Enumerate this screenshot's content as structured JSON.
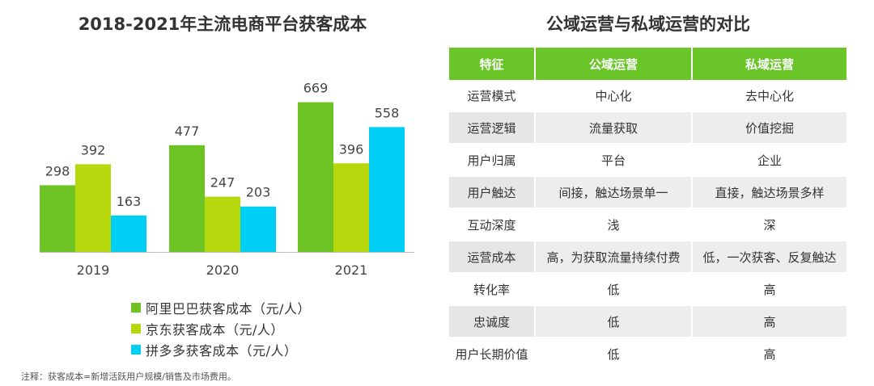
{
  "left": {
    "title": "2018-2021年主流电商平台获客成本",
    "note": "注释：获客成本=新增活跃用户规模/销售及市场费用。"
  },
  "chart_data": {
    "type": "bar",
    "categories": [
      "2019",
      "2020",
      "2021"
    ],
    "series": [
      {
        "name": "阿里巴巴获客成本（元/人）",
        "values": [
          298,
          477,
          669
        ],
        "color": "#6cc323"
      },
      {
        "name": "京东获客成本（元/人）",
        "values": [
          392,
          247,
          396
        ],
        "color": "#b7d80d"
      },
      {
        "name": "拼多多获客成本（元/人）",
        "values": [
          163,
          203,
          558
        ],
        "color": "#00cff5"
      }
    ],
    "title": "2018-2021年主流电商平台获客成本",
    "ylim": [
      0,
      700
    ],
    "grid": false,
    "legend": "bottom"
  },
  "right": {
    "title": "公域运营与私域运营的对比",
    "headers": [
      "特征",
      "公域运营",
      "私域运营"
    ],
    "rows": [
      [
        "运营模式",
        "中心化",
        "去中心化"
      ],
      [
        "运营逻辑",
        "流量获取",
        "价值挖掘"
      ],
      [
        "用户归属",
        "平台",
        "企业"
      ],
      [
        "用户触达",
        "间接，触达场景单一",
        "直接，触达场景多样"
      ],
      [
        "互动深度",
        "浅",
        "深"
      ],
      [
        "运营成本",
        "高，为获取流量持续付费",
        "低，一次获客、反复触达"
      ],
      [
        "转化率",
        "低",
        "高"
      ],
      [
        "忠诚度",
        "低",
        "高"
      ],
      [
        "用户长期价值",
        "低",
        "高"
      ]
    ]
  }
}
